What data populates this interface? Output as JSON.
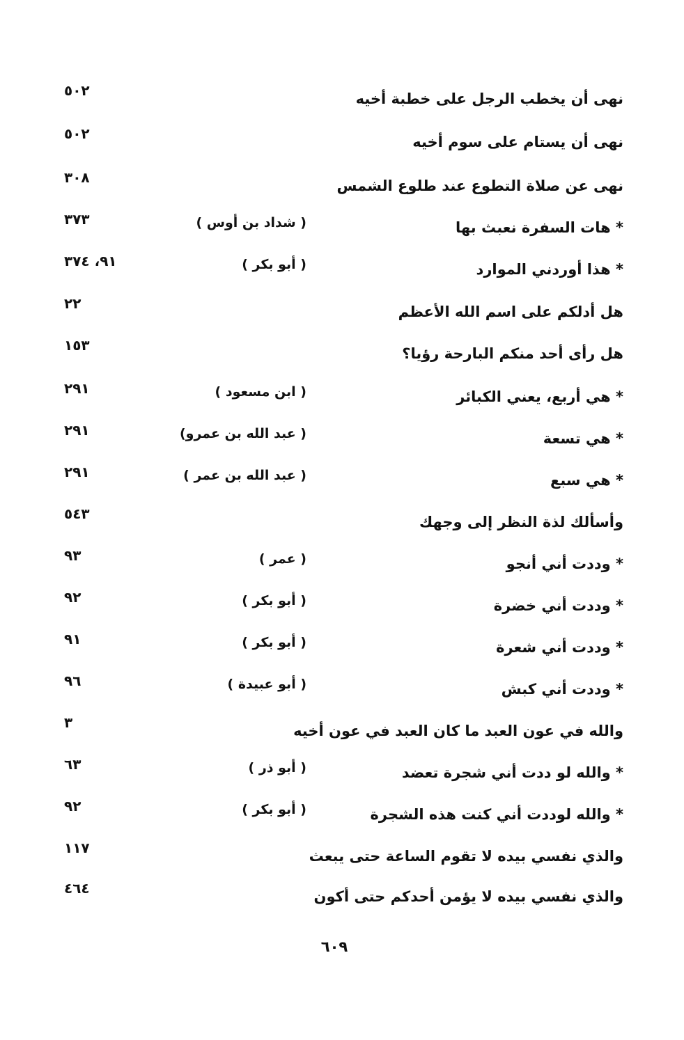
{
  "entries": [
    {
      "title": "نهى أن يخطب الرجل على خطبة أخيه",
      "narrator": "",
      "pages": "٥٠٢"
    },
    {
      "title": "نهى أن يستام على سوم أخيه",
      "narrator": "",
      "pages": "٥٠٢"
    },
    {
      "title": "نهى عن صلاة التطوع عند طلوع الشمس",
      "narrator": "",
      "pages": "٣٠٨"
    },
    {
      "title": "* هات السفرة نعبث بها",
      "narrator": "( شداد بن أوس )",
      "pages": "٣٧٣"
    },
    {
      "title": "* هذا أوردني الموارد",
      "narrator": "( أبو بكر )",
      "pages": "٩١، ٣٧٤"
    },
    {
      "title": "هل أدلكم على اسم الله الأعظم",
      "narrator": "",
      "pages": "٢٢"
    },
    {
      "title": "هل رأى أحد منكم البارحة رؤيا؟",
      "narrator": "",
      "pages": "١٥٣"
    },
    {
      "title": "* هي أربع، يعني الكبائر",
      "narrator": "( ابن مسعود )",
      "pages": "٢٩١"
    },
    {
      "title": "* هي تسعة",
      "narrator": "( عبد الله بن عمرو)",
      "pages": "٢٩١"
    },
    {
      "title": "* هي سبع",
      "narrator": "( عبد الله بن عمر )",
      "pages": "٢٩١"
    },
    {
      "title": "وأسألك لذة النظر إلى وجهك",
      "narrator": "",
      "pages": "٥٤٣"
    },
    {
      "title": "* وددت أني أنجو",
      "narrator": "( عمر )",
      "pages": "٩٣"
    },
    {
      "title": "* وددت أني خضرة",
      "narrator": "( أبو بكر )",
      "pages": "٩٢"
    },
    {
      "title": "* وددت أني شعرة",
      "narrator": "( أبو بكر )",
      "pages": "٩١"
    },
    {
      "title": "* وددت أني كبش",
      "narrator": "( أبو عبيدة )",
      "pages": "٩٦"
    },
    {
      "title": "والله في عون العبد ما كان العبد في عون أخيه",
      "narrator": "",
      "pages": "٣"
    },
    {
      "title": "* والله لو ددت أني شجرة تعضد",
      "narrator": "( أبو ذر )",
      "pages": "٦٣"
    },
    {
      "title": "* والله لوددت أني كنت هذه الشجرة",
      "narrator": "( أبو بكر )",
      "pages": "٩٢"
    },
    {
      "title": "والذي نفسي بيده لا تقوم الساعة حتى يبعث",
      "narrator": "",
      "pages": "١١٧"
    },
    {
      "title": "والذي نفسي بيده لا يؤمن أحدكم حتى أكون",
      "narrator": "",
      "pages": "٤٦٤"
    }
  ],
  "page_number": "٦٠٩"
}
